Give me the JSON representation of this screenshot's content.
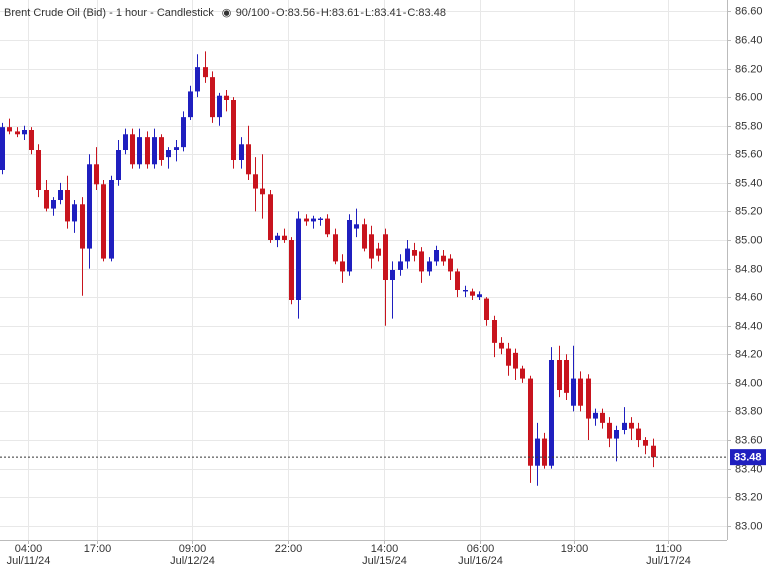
{
  "chart_data": {
    "type": "candlestick",
    "title": "Brent Crude Oil (Bid) - 1 hour - Candlestick",
    "counter": "90/100",
    "ohlc_labels": [
      "O:83.56",
      "H:83.61",
      "L:83.41",
      "C:83.48"
    ],
    "up_color": "#1f1fbf",
    "down_color": "#c8141e",
    "open": [
      85.49,
      85.79,
      85.76,
      85.74,
      85.77,
      85.63,
      85.35,
      85.22,
      85.28,
      85.35,
      85.13,
      85.25,
      84.94,
      85.53,
      85.39,
      84.87,
      85.42,
      85.63,
      85.74,
      85.53,
      85.72,
      85.53,
      85.72,
      85.58,
      85.63,
      85.65,
      85.86,
      86.04,
      86.21,
      86.14,
      85.86,
      86.01,
      85.98,
      85.56,
      85.67,
      85.46,
      85.36,
      85.32,
      85.0,
      85.03,
      85.0,
      84.58,
      85.15,
      85.13,
      85.14,
      85.15,
      85.04,
      84.85,
      84.78,
      85.08,
      85.11,
      85.04,
      84.94,
      85.04,
      84.72,
      84.79,
      84.85,
      84.93,
      84.92,
      84.78,
      84.85,
      84.89,
      84.87,
      84.78,
      84.64,
      84.64,
      84.6,
      84.59,
      84.44,
      84.28,
      84.24,
      84.21,
      84.1,
      84.03,
      83.42,
      83.61,
      83.42,
      84.16,
      84.16,
      83.84,
      84.03,
      84.03,
      83.75,
      83.79,
      83.72,
      83.61,
      83.67,
      83.72,
      83.68,
      83.6,
      83.56
    ],
    "high": [
      85.82,
      85.85,
      85.79,
      85.8,
      85.79,
      85.67,
      85.42,
      85.3,
      85.4,
      85.45,
      85.28,
      85.3,
      85.6,
      85.65,
      85.42,
      85.45,
      85.7,
      85.78,
      85.78,
      85.78,
      85.76,
      85.78,
      85.74,
      85.65,
      85.7,
      85.9,
      86.08,
      86.3,
      86.32,
      86.18,
      86.03,
      86.05,
      86.0,
      85.72,
      85.8,
      85.58,
      85.6,
      85.35,
      85.05,
      85.08,
      85.02,
      85.2,
      85.18,
      85.17,
      85.16,
      85.18,
      85.08,
      84.9,
      85.18,
      85.22,
      85.15,
      85.1,
      84.98,
      85.08,
      84.85,
      84.9,
      85.0,
      84.98,
      84.95,
      84.88,
      84.96,
      84.93,
      84.9,
      84.8,
      84.68,
      84.66,
      84.64,
      84.6,
      84.47,
      84.32,
      84.28,
      84.24,
      84.12,
      84.05,
      83.72,
      83.65,
      84.25,
      84.26,
      84.2,
      84.26,
      84.08,
      84.06,
      83.82,
      83.82,
      83.76,
      83.7,
      83.83,
      83.76,
      83.72,
      83.62,
      83.61
    ],
    "low": [
      85.46,
      85.74,
      85.72,
      85.7,
      85.6,
      85.3,
      85.2,
      85.17,
      85.25,
      85.08,
      85.05,
      84.61,
      84.8,
      85.35,
      84.85,
      84.85,
      85.38,
      85.6,
      85.5,
      85.5,
      85.5,
      85.5,
      85.52,
      85.5,
      85.55,
      85.62,
      85.84,
      86.0,
      86.1,
      85.82,
      85.8,
      85.9,
      85.5,
      85.5,
      85.42,
      85.2,
      85.15,
      84.98,
      84.95,
      84.98,
      84.55,
      84.45,
      85.1,
      85.08,
      85.1,
      85.02,
      84.83,
      84.7,
      84.75,
      85.02,
      84.92,
      84.8,
      84.85,
      84.4,
      84.45,
      84.75,
      84.8,
      84.85,
      84.7,
      84.75,
      84.82,
      84.82,
      84.72,
      84.6,
      84.6,
      84.58,
      84.58,
      84.4,
      84.18,
      84.2,
      84.05,
      84.02,
      84.0,
      83.3,
      83.28,
      83.4,
      83.4,
      83.9,
      83.88,
      83.8,
      83.8,
      83.6,
      83.7,
      83.68,
      83.55,
      83.45,
      83.64,
      83.6,
      83.55,
      83.5,
      83.41
    ],
    "close": [
      85.79,
      85.76,
      85.74,
      85.77,
      85.63,
      85.35,
      85.22,
      85.28,
      85.35,
      85.13,
      85.25,
      84.94,
      85.53,
      85.39,
      84.87,
      85.42,
      85.63,
      85.74,
      85.53,
      85.72,
      85.53,
      85.72,
      85.56,
      85.63,
      85.65,
      85.86,
      86.04,
      86.21,
      86.14,
      85.86,
      86.01,
      85.98,
      85.56,
      85.67,
      85.46,
      85.36,
      85.32,
      85.0,
      85.03,
      85.0,
      84.58,
      85.15,
      85.13,
      85.15,
      85.15,
      85.04,
      84.85,
      84.78,
      85.14,
      85.11,
      84.94,
      84.87,
      84.89,
      84.72,
      84.79,
      84.85,
      84.94,
      84.89,
      84.78,
      84.85,
      84.93,
      84.85,
      84.78,
      84.65,
      84.65,
      84.61,
      84.62,
      84.44,
      84.28,
      84.24,
      84.12,
      84.1,
      84.03,
      83.42,
      83.61,
      83.42,
      84.16,
      83.95,
      83.93,
      84.03,
      83.84,
      83.75,
      83.79,
      83.72,
      83.61,
      83.67,
      83.72,
      83.68,
      83.6,
      83.56,
      83.48
    ],
    "last_price": {
      "value": 83.48,
      "label": "83.48"
    },
    "xlim": [
      -0.3,
      100.3
    ],
    "xticks": [
      {
        "value": 3.6,
        "label": "04:00",
        "date": "Jul/11/24"
      },
      {
        "value": 13.1,
        "label": "17:00"
      },
      {
        "value": 26.3,
        "label": "09:00",
        "date": "Jul/12/24"
      },
      {
        "value": 39.6,
        "label": "22:00"
      },
      {
        "value": 52.8,
        "label": "14:00",
        "date": "Jul/15/24"
      },
      {
        "value": 66.1,
        "label": "06:00",
        "date": "Jul/16/24"
      },
      {
        "value": 79.1,
        "label": "19:00"
      },
      {
        "value": 92.1,
        "label": "11:00",
        "date": "Jul/17/24"
      }
    ],
    "ylim": [
      82.9,
      86.68
    ],
    "yticks": [
      {
        "value": 83.0,
        "label": "83.00"
      },
      {
        "value": 83.2,
        "label": "83.20"
      },
      {
        "value": 83.4,
        "label": "83.40"
      },
      {
        "value": 83.6,
        "label": "83.60"
      },
      {
        "value": 83.8,
        "label": "83.80"
      },
      {
        "value": 84.0,
        "label": "84.00"
      },
      {
        "value": 84.2,
        "label": "84.20"
      },
      {
        "value": 84.4,
        "label": "84.40"
      },
      {
        "value": 84.6,
        "label": "84.60"
      },
      {
        "value": 84.8,
        "label": "84.80"
      },
      {
        "value": 85.0,
        "label": "85.00"
      },
      {
        "value": 85.2,
        "label": "85.20"
      },
      {
        "value": 85.4,
        "label": "85.40"
      },
      {
        "value": 85.6,
        "label": "85.60"
      },
      {
        "value": 85.8,
        "label": "85.80"
      },
      {
        "value": 86.0,
        "label": "86.00"
      },
      {
        "value": 86.2,
        "label": "86.20"
      },
      {
        "value": 86.4,
        "label": "86.40"
      },
      {
        "value": 86.6,
        "label": "86.60"
      }
    ],
    "grid": true
  }
}
